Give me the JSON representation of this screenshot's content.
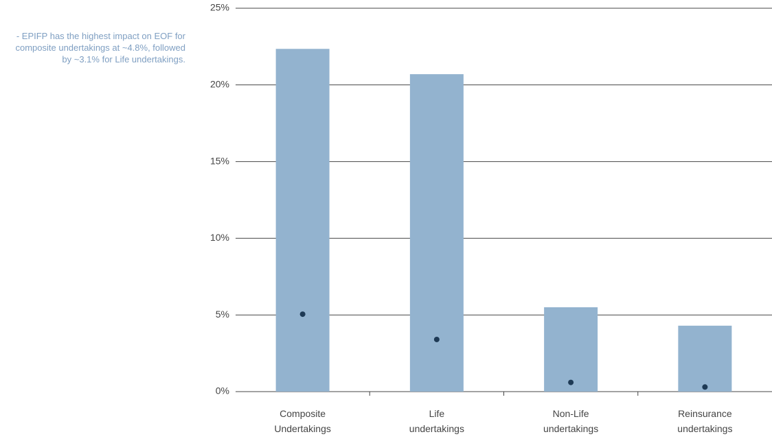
{
  "chart_data": {
    "type": "bar",
    "annotation": "- EPIFP has the highest impact on EOF for composite undertakings at ~4.8%, followed by ~3.1% for Life undertakings.",
    "categories": [
      "Composite Undertakings",
      "Life undertakings",
      "Non-Life undertakings",
      "Reinsurance undertakings"
    ],
    "series": [
      {
        "color": "#93b3cf",
        "values": [
          22.35,
          20.7,
          5.5,
          4.3
        ]
      },
      {
        "color": "#1e3a55",
        "marker": "dot",
        "values": [
          5.05,
          3.4,
          0.6,
          0.3
        ]
      }
    ],
    "ylim": [
      0,
      25
    ],
    "yticks": [
      {
        "value": 0,
        "label": "0%"
      },
      {
        "value": 5,
        "label": "5%"
      },
      {
        "value": 10,
        "label": "10%"
      },
      {
        "value": 15,
        "label": "15%"
      },
      {
        "value": 20,
        "label": "20%"
      },
      {
        "value": 25,
        "label": "25%"
      }
    ],
    "grid": true
  }
}
